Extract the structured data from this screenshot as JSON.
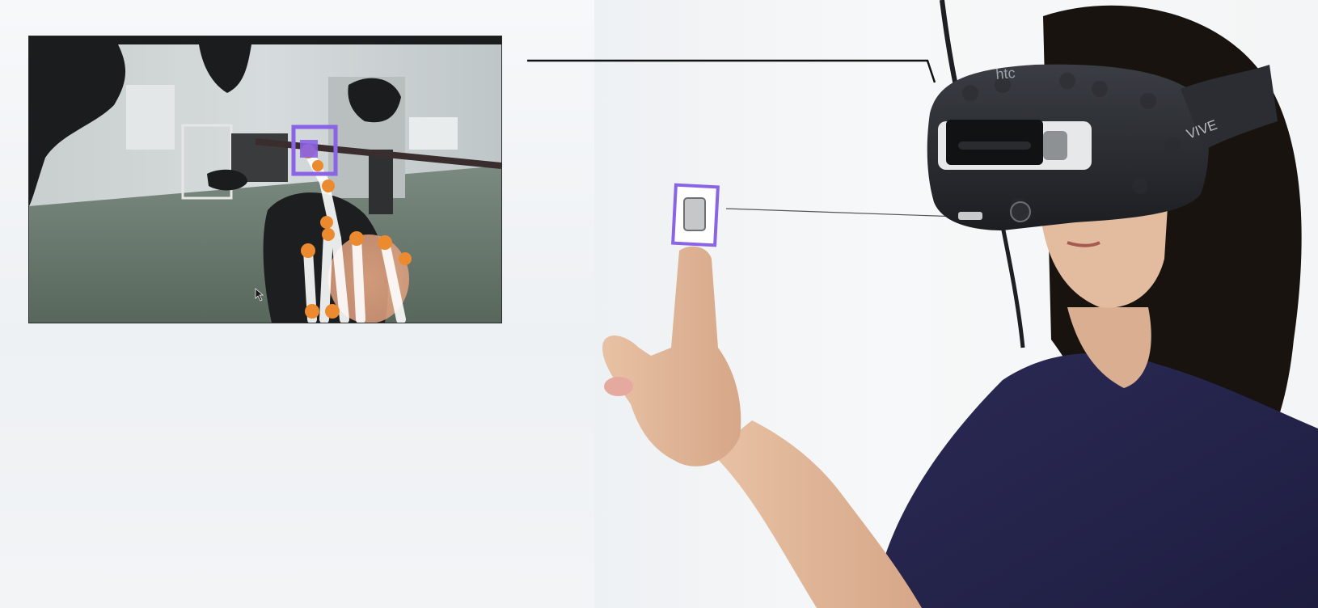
{
  "scene": {
    "accent_color": "#8a63e6",
    "headset_brand": "htc",
    "headset_model": "VIVE"
  },
  "inset": {
    "description_icon": "cursor-arrow-icon"
  }
}
